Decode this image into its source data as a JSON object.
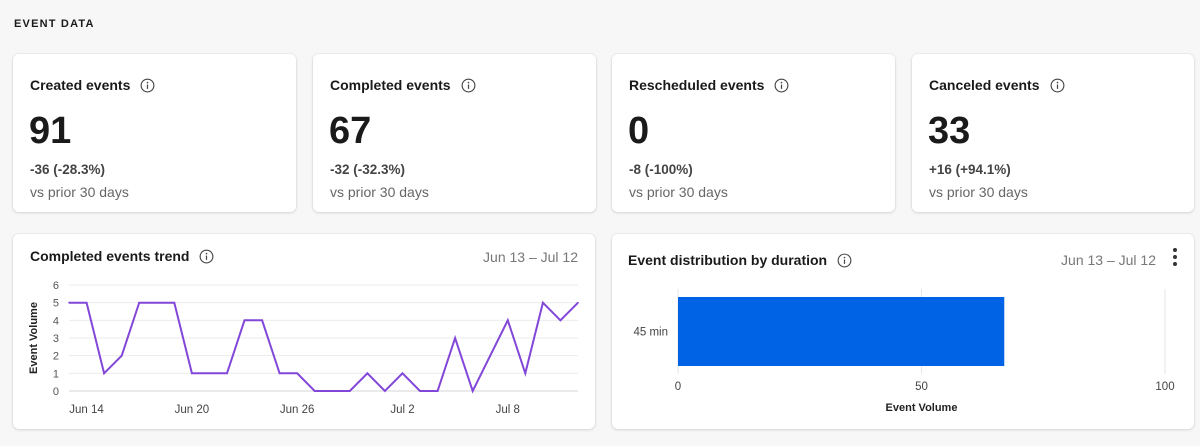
{
  "section": {
    "title": "EVENT DATA"
  },
  "stats": [
    {
      "title": "Created events",
      "value": "91",
      "delta": "-36 (-28.3%)",
      "sub": "vs prior 30 days"
    },
    {
      "title": "Completed events",
      "value": "67",
      "delta": "-32 (-32.3%)",
      "sub": "vs prior 30 days"
    },
    {
      "title": "Rescheduled events",
      "value": "0",
      "delta": "-8 (-100%)",
      "sub": "vs prior 30 days"
    },
    {
      "title": "Canceled events",
      "value": "33",
      "delta": "+16 (+94.1%)",
      "sub": "vs prior 30 days"
    }
  ],
  "trend": {
    "title": "Completed events trend",
    "date_range": "Jun 13 – Jul 12"
  },
  "distribution": {
    "title": "Event distribution by duration",
    "date_range": "Jun 13 – Jul 12"
  },
  "colors": {
    "line": "#8247d9",
    "bar": "#0063e6"
  },
  "icons": {
    "info": "info-icon",
    "menu": "kebab-icon"
  },
  "chart_data": [
    {
      "type": "line",
      "x": [
        "Jun 13",
        "Jun 14",
        "Jun 15",
        "Jun 16",
        "Jun 17",
        "Jun 18",
        "Jun 19",
        "Jun 20",
        "Jun 21",
        "Jun 22",
        "Jun 23",
        "Jun 24",
        "Jun 25",
        "Jun 26",
        "Jun 27",
        "Jun 28",
        "Jun 29",
        "Jun 30",
        "Jul 1",
        "Jul 2",
        "Jul 3",
        "Jul 4",
        "Jul 5",
        "Jul 6",
        "Jul 7",
        "Jul 8",
        "Jul 9",
        "Jul 10",
        "Jul 11",
        "Jul 12"
      ],
      "tick_labels": [
        "Jun 14",
        "Jun 20",
        "Jun 26",
        "Jul 2",
        "Jul 8"
      ],
      "values": [
        5,
        5,
        1,
        2,
        5,
        5,
        5,
        1,
        1,
        1,
        4,
        4,
        1,
        1,
        0,
        0,
        0,
        1,
        0,
        1,
        0,
        0,
        3,
        0,
        2,
        4,
        1,
        5,
        4,
        5
      ],
      "ylabel": "Event Volume",
      "ylim": [
        0,
        6
      ],
      "yticks": [
        0,
        1,
        2,
        3,
        4,
        5,
        6
      ],
      "grid": true
    },
    {
      "type": "bar",
      "orientation": "horizontal",
      "categories": [
        "45 min"
      ],
      "values": [
        67
      ],
      "xlabel": "Event Volume",
      "xlim": [
        0,
        100
      ],
      "xticks": [
        0,
        50,
        100
      ],
      "grid": true
    }
  ]
}
